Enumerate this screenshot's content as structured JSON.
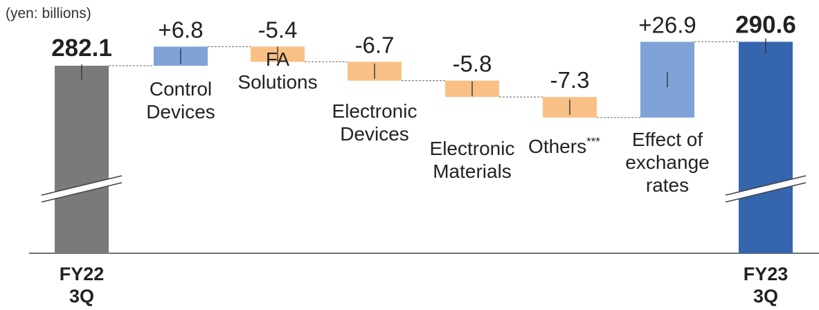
{
  "chart_data": {
    "type": "bar",
    "subtype": "waterfall",
    "unit_label": "(yen: billions)",
    "start": {
      "label_lines": [
        "FY22",
        "3Q"
      ],
      "value": 282.1,
      "value_label": "282.1",
      "color": "#7a7a7a"
    },
    "steps": [
      {
        "label_lines": [
          "Control",
          "Devices"
        ],
        "value": 6.8,
        "value_label": "+6.8",
        "color": "#7fa3d6"
      },
      {
        "label_lines": [
          "FA",
          "Solutions"
        ],
        "value": -5.4,
        "value_label": "-5.4",
        "color": "#f9c086"
      },
      {
        "label_lines": [
          "Electronic",
          "Devices"
        ],
        "value": -6.7,
        "value_label": "-6.7",
        "color": "#f9c086"
      },
      {
        "label_lines": [
          "Electronic",
          "Materials"
        ],
        "value": -5.8,
        "value_label": "-5.8",
        "color": "#f9c086"
      },
      {
        "label_lines": [
          "Others"
        ],
        "label_suffix": "***",
        "value": -7.3,
        "value_label": "-7.3",
        "color": "#f9c086"
      },
      {
        "label_lines": [
          "Effect of",
          "exchange",
          "rates"
        ],
        "value": 26.9,
        "value_label": "+26.9",
        "color": "#7fa3d6"
      }
    ],
    "end": {
      "label_lines": [
        "FY23",
        "3Q"
      ],
      "value": 290.6,
      "value_label": "290.6",
      "color": "#3565ad"
    },
    "axis_break": true,
    "connector_style": "dashed",
    "grid": false,
    "legend": "none"
  }
}
